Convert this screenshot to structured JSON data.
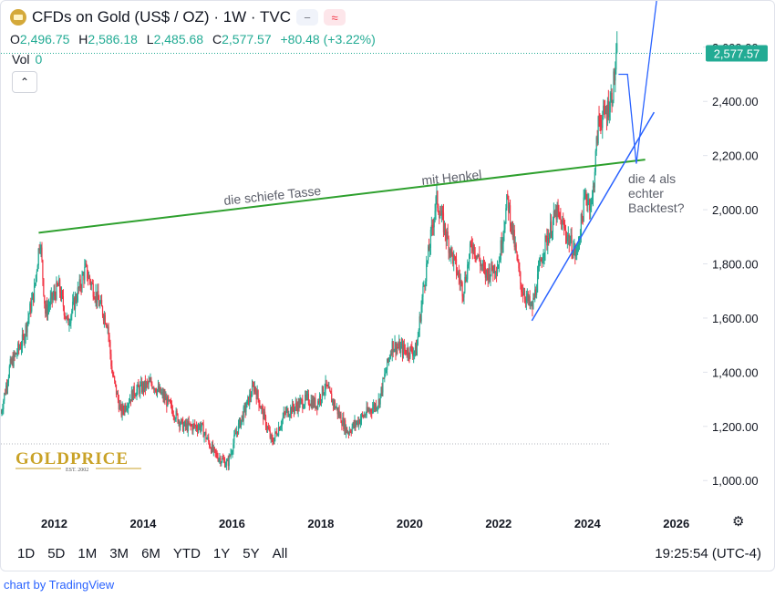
{
  "header": {
    "title": "CFDs on Gold (US$ / OZ) · 1W · TVC",
    "ohlc": [
      {
        "k": "O",
        "v": "2,496.75"
      },
      {
        "k": "H",
        "v": "2,586.18"
      },
      {
        "k": "L",
        "v": "2,485.68"
      },
      {
        "k": "C",
        "v": "2,577.57"
      }
    ],
    "change": "+80.48 (+3.22%)",
    "vol_label": "Vol",
    "vol_value": "0"
  },
  "colors": {
    "up": "#22ab94",
    "down": "#f23645",
    "trend_green": "#2ea02e",
    "trend_blue": "#2962ff"
  },
  "annotations": {
    "tasse": "die schiefe Tasse",
    "henkel": "mit Henkel",
    "backtest_lines": [
      "die 4 als",
      "echter",
      "Backtest?"
    ]
  },
  "logo": {
    "text": "GOLDPRICE",
    "sub": "EST. 2002"
  },
  "chart_data": {
    "type": "candlestick",
    "title": "CFDs on Gold (US$ / OZ) · 1W · TVC",
    "x_ticks": [
      "2012",
      "2014",
      "2016",
      "2018",
      "2020",
      "2022",
      "2024",
      "2026"
    ],
    "y_ticks": [
      "1,000.00",
      "1,200.00",
      "1,400.00",
      "1,600.00",
      "1,800.00",
      "2,000.00",
      "2,200.00",
      "2,400.00",
      "2,600.00"
    ],
    "xlim": [
      2010.8,
      2026.6
    ],
    "ylim": [
      920,
      2670
    ],
    "last_price": "2,577.57",
    "trend_points": [
      [
        2010.8,
        1250
      ],
      [
        2011.0,
        1420
      ],
      [
        2011.3,
        1520
      ],
      [
        2011.55,
        1700
      ],
      [
        2011.68,
        1900
      ],
      [
        2011.8,
        1620
      ],
      [
        2012.1,
        1720
      ],
      [
        2012.3,
        1580
      ],
      [
        2012.7,
        1780
      ],
      [
        2012.9,
        1700
      ],
      [
        2013.2,
        1580
      ],
      [
        2013.3,
        1400
      ],
      [
        2013.5,
        1250
      ],
      [
        2013.8,
        1330
      ],
      [
        2014.2,
        1360
      ],
      [
        2014.5,
        1300
      ],
      [
        2014.9,
        1200
      ],
      [
        2015.3,
        1200
      ],
      [
        2015.6,
        1100
      ],
      [
        2015.9,
        1060
      ],
      [
        2016.1,
        1180
      ],
      [
        2016.5,
        1350
      ],
      [
        2016.9,
        1140
      ],
      [
        2017.2,
        1250
      ],
      [
        2017.7,
        1300
      ],
      [
        2017.9,
        1280
      ],
      [
        2018.1,
        1350
      ],
      [
        2018.6,
        1180
      ],
      [
        2018.9,
        1230
      ],
      [
        2019.3,
        1290
      ],
      [
        2019.6,
        1500
      ],
      [
        2019.9,
        1480
      ],
      [
        2020.15,
        1480
      ],
      [
        2020.3,
        1700
      ],
      [
        2020.6,
        2040
      ],
      [
        2020.9,
        1860
      ],
      [
        2021.2,
        1700
      ],
      [
        2021.4,
        1880
      ],
      [
        2021.7,
        1760
      ],
      [
        2022.0,
        1800
      ],
      [
        2022.2,
        2040
      ],
      [
        2022.5,
        1720
      ],
      [
        2022.75,
        1630
      ],
      [
        2023.0,
        1850
      ],
      [
        2023.3,
        1990
      ],
      [
        2023.5,
        1920
      ],
      [
        2023.75,
        1830
      ],
      [
        2023.95,
        2050
      ],
      [
        2024.1,
        2020
      ],
      [
        2024.25,
        2330
      ],
      [
        2024.4,
        2350
      ],
      [
        2024.55,
        2420
      ],
      [
        2024.67,
        2577
      ]
    ],
    "green_trendline": [
      [
        2011.65,
        1915
      ],
      [
        2025.3,
        2185
      ]
    ],
    "blue_support_line": [
      [
        2022.75,
        1590
      ],
      [
        2025.5,
        2360
      ]
    ],
    "blue_projection": [
      [
        2024.7,
        2500
      ],
      [
        2024.9,
        2500
      ],
      [
        2025.1,
        2170
      ],
      [
        2025.65,
        2895
      ]
    ]
  },
  "controls": {
    "ranges": [
      "1D",
      "5D",
      "1M",
      "3M",
      "6M",
      "YTD",
      "1Y",
      "5Y",
      "All"
    ],
    "time": "19:25:54 (UTC-4)",
    "credit": "chart by TradingView"
  }
}
